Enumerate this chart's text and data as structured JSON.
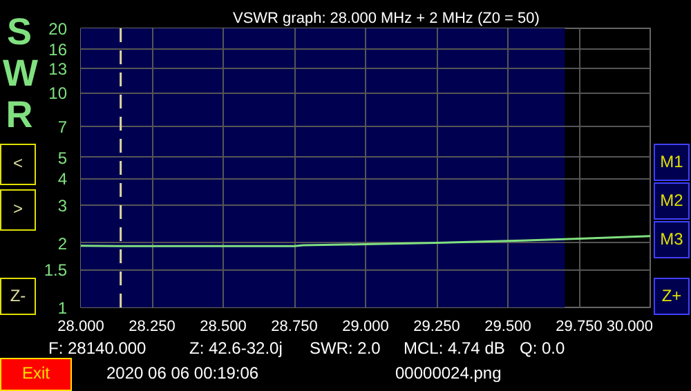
{
  "chart_data": {
    "type": "line",
    "title": "VSWR graph: 28.000 MHz + 2 MHz   (Z0 = 50)",
    "ylabel": "SWR",
    "x": [
      28.0,
      28.14,
      28.25,
      28.5,
      28.75,
      28.78,
      29.0,
      29.25,
      29.5,
      29.75,
      30.0
    ],
    "series": [
      {
        "color": "#80e080",
        "values": [
          1.94,
          1.93,
          1.93,
          1.93,
          1.93,
          1.95,
          1.97,
          2.0,
          2.04,
          2.09,
          2.15
        ]
      }
    ],
    "xlim": [
      28.0,
      30.0
    ],
    "xticks": [
      {
        "value": 28.0,
        "label": "28.000"
      },
      {
        "value": 28.25,
        "label": "28.250"
      },
      {
        "value": 28.5,
        "label": "28.500"
      },
      {
        "value": 28.75,
        "label": "28.750"
      },
      {
        "value": 29.0,
        "label": "29.000"
      },
      {
        "value": 29.25,
        "label": "29.250"
      },
      {
        "value": 29.5,
        "label": "29.500"
      },
      {
        "value": 29.75,
        "label": "29.750"
      },
      {
        "value": 30.0,
        "label": "30.000"
      }
    ],
    "ylim": [
      1,
      20
    ],
    "yticks": [
      1,
      1.5,
      2,
      3,
      4,
      5,
      7,
      10,
      13,
      16,
      20
    ],
    "log": "y",
    "grid": true,
    "line_style": "solid",
    "ref_lines": [
      {
        "axis": "x",
        "value": 28.14,
        "color": "#e0d8a0",
        "line_style": "dashed"
      }
    ],
    "bands": [
      {
        "axis": "x",
        "from": 28.0,
        "to": 29.7,
        "color": "#000050"
      }
    ],
    "annotations": [
      "F: 28140.000",
      "Z: 42.6-32.0j",
      "SWR: 2.0",
      "MCL: 4.74 dB",
      "Q: 0.0",
      "2020 06 06 00:19:06",
      "00000024.png",
      "<",
      ">",
      "Z-",
      "M1",
      "M2",
      "M3",
      "Z+",
      "Exit"
    ]
  }
}
